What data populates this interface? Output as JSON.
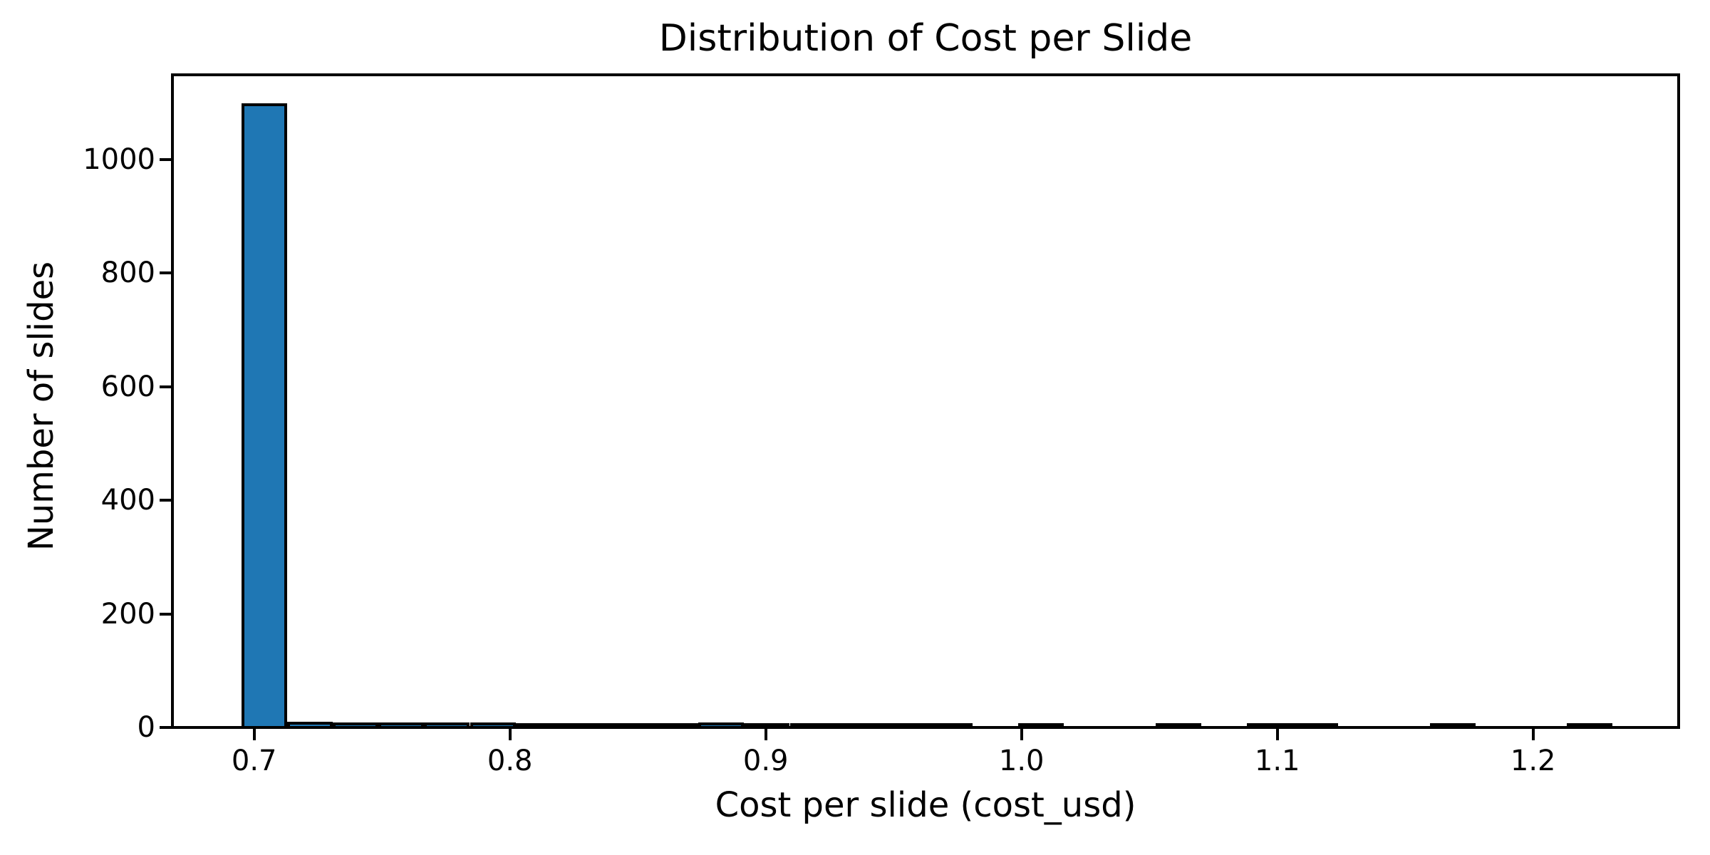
{
  "figure": {
    "background": "#ffffff",
    "text_color": "#000000"
  },
  "chart_data": {
    "type": "bar",
    "subtype": "histogram",
    "title": "Distribution of Cost per Slide",
    "xlabel": "Cost per slide (cost_usd)",
    "ylabel": "Number of slides",
    "bar_color": "#1f77b4",
    "bar_edge_color": "#000000",
    "bin_start": 0.695,
    "bin_width": 0.017867,
    "bin_counts": [
      1092,
      4,
      3,
      2,
      2,
      2,
      1,
      1,
      1,
      1,
      2,
      1,
      1,
      1,
      1,
      1,
      0,
      1,
      0,
      0,
      1,
      0,
      1,
      1,
      0,
      0,
      1,
      0,
      0,
      1
    ],
    "x_ticks": [
      0.7,
      0.8,
      0.9,
      1.0,
      1.1,
      1.2
    ],
    "x_tick_labels": [
      "0.7",
      "0.8",
      "0.9",
      "1.0",
      "1.1",
      "1.2"
    ],
    "y_ticks": [
      0,
      200,
      400,
      600,
      800,
      1000
    ],
    "y_tick_labels": [
      "0",
      "200",
      "400",
      "600",
      "800",
      "1000"
    ],
    "xlim": [
      0.666,
      1.257
    ],
    "ylim": [
      0,
      1149
    ],
    "grid": false,
    "legend": null
  }
}
